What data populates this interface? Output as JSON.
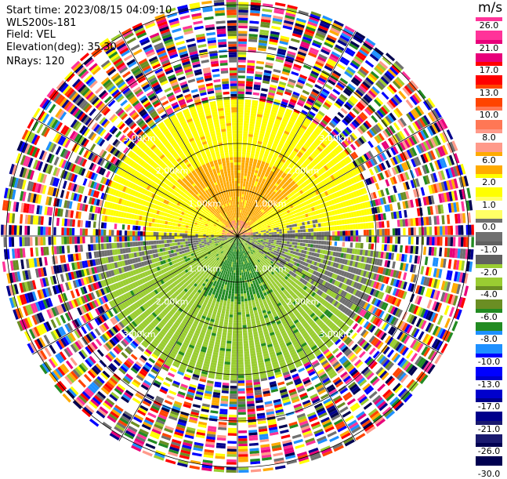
{
  "info": {
    "start_time": "Start time: 2023/08/15 04:09:10",
    "site": "WLS200s-181",
    "field": "Field: VEL",
    "elevation": "Elevation(deg): 35.30",
    "nrays": "NRays: 120"
  },
  "colorbar": {
    "unit": "m/s",
    "labels": [
      "26.0",
      "21.0",
      "17.0",
      "13.0",
      "10.0",
      "8.0",
      "6.0",
      "2.0",
      "1.0",
      "0.0",
      "-1.0",
      "-2.0",
      "-4.0",
      "-6.0",
      "-8.0",
      "-10.0",
      "-13.0",
      "-17.0",
      "-21.0",
      "-26.0",
      "-30.0"
    ],
    "colors": [
      "#ff3399",
      "#e8007a",
      "#ff0000",
      "#ff4400",
      "#ff7755",
      "#ff9a8a",
      "#ffaa00",
      "#ffff00",
      "#ffff66",
      "#707070",
      "#606060",
      "#9acd32",
      "#6b8e23",
      "#228b22",
      "#1e90ff",
      "#0000ff",
      "#0000cd",
      "#00008b",
      "#1a1a6e",
      "#000050"
    ]
  },
  "range_rings": {
    "labels": [
      "1.00km",
      "2.00km",
      "3.00km"
    ]
  },
  "ppi": {
    "nrays": 120
  }
}
